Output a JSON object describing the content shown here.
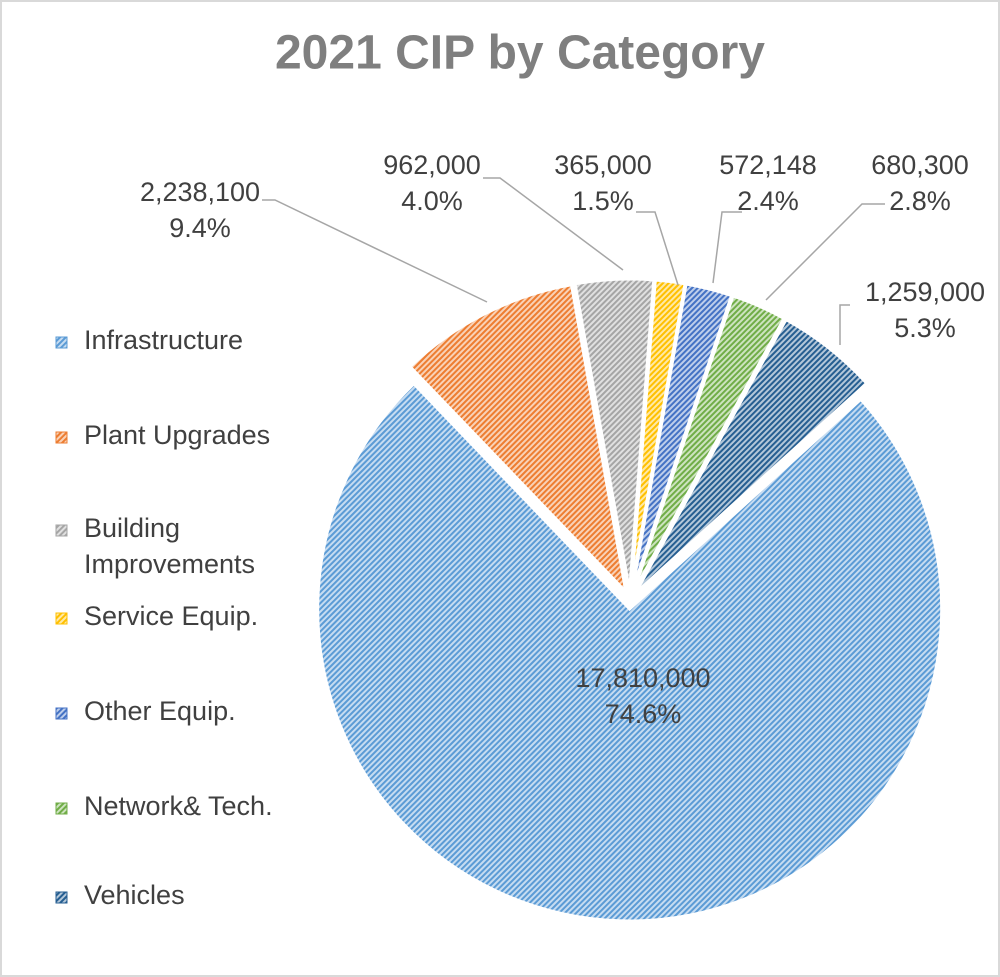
{
  "chart_data": {
    "type": "pie",
    "title": "2021 CIP by Category",
    "categories": [
      "Infrastructure",
      "Plant Upgrades",
      "Building Improvements",
      "Service Equip.",
      "Other Equip.",
      "Network& Tech.",
      "Vehicles"
    ],
    "values": [
      17810000,
      2238100,
      962000,
      365000,
      572148,
      680300,
      1259000
    ],
    "value_labels": [
      "17,810,000",
      "2,238,100",
      "962,000",
      "365,000",
      "572,148",
      "680,300",
      "1,259,000"
    ],
    "percent_labels": [
      "74.6%",
      "9.4%",
      "4.0%",
      "1.5%",
      "2.4%",
      "2.8%",
      "5.3%"
    ],
    "colors": [
      "#5b9bd5",
      "#ed7d31",
      "#a5a5a5",
      "#ffc000",
      "#4472c4",
      "#70ad47",
      "#255e91"
    ],
    "legend": "left"
  }
}
